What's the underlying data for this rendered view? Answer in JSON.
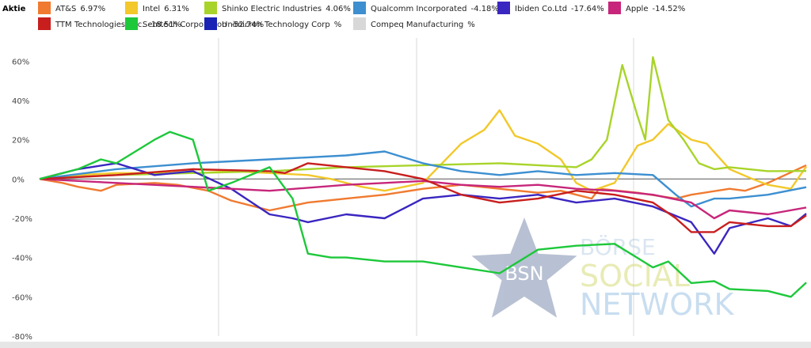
{
  "chart_data": {
    "type": "line",
    "legend_title": "Aktie",
    "ylim": [
      -80,
      75
    ],
    "yticks": [
      {
        "value": 60,
        "label": "60%"
      },
      {
        "value": 40,
        "label": "40%"
      },
      {
        "value": 20,
        "label": "20%"
      },
      {
        "value": 0,
        "label": "0%"
      },
      {
        "value": -20,
        "label": "-20%"
      },
      {
        "value": -40,
        "label": "-40%"
      },
      {
        "value": -60,
        "label": "-60%"
      },
      {
        "value": -80,
        "label": "-80%"
      }
    ],
    "xlim": [
      0,
      100
    ],
    "grid": {
      "vertical": true,
      "zero_line": true
    },
    "legend_placement": "top",
    "watermark": {
      "brand_short": "BSN",
      "line1": "BÖRSE",
      "line2": "SOCIAL",
      "line3": "NETWORK"
    },
    "series": [
      {
        "name": "AT&S",
        "label": "6.97%",
        "color": "#f07a30",
        "x": [
          0,
          3,
          5,
          8,
          10,
          15,
          18,
          22,
          25,
          30,
          35,
          40,
          45,
          50,
          55,
          60,
          65,
          68,
          70,
          72,
          73,
          78,
          83,
          85,
          90,
          92,
          95,
          100
        ],
        "y": [
          0,
          -2,
          -4,
          -6,
          -3,
          -2,
          -3,
          -6,
          -11,
          -16,
          -12,
          -10,
          -8,
          -5,
          -3,
          -5,
          -7,
          -6,
          -8,
          -10,
          -5,
          -7,
          -10,
          -8,
          -5,
          -6,
          -2,
          6.97
        ]
      },
      {
        "name": "Intel",
        "label": "6.31%",
        "color": "#f2c82a",
        "x": [
          0,
          5,
          10,
          15,
          20,
          25,
          30,
          35,
          38,
          40,
          42,
          45,
          50,
          55,
          58,
          60,
          62,
          65,
          68,
          70,
          72,
          75,
          78,
          80,
          82,
          85,
          87,
          90,
          93,
          95,
          98,
          100
        ],
        "y": [
          0,
          2,
          3,
          3,
          5,
          4,
          3,
          2,
          0,
          -2,
          -4,
          -6,
          -2,
          18,
          25,
          35,
          22,
          18,
          10,
          -2,
          -6,
          -2,
          17,
          20,
          28,
          20,
          18,
          5,
          0,
          -3,
          -5,
          6.31
        ]
      },
      {
        "name": "Shinko Electric Industries",
        "label": "4.06%",
        "color": "#a8d42a",
        "x": [
          0,
          10,
          20,
          30,
          40,
          50,
          60,
          65,
          70,
          72,
          74,
          76,
          78,
          79,
          80,
          82,
          84,
          86,
          88,
          90,
          95,
          100
        ],
        "y": [
          0,
          2,
          3,
          4,
          6,
          7,
          8,
          7,
          6,
          10,
          20,
          58,
          32,
          20,
          62,
          30,
          20,
          8,
          5,
          6,
          4,
          4.06
        ]
      },
      {
        "name": "Qualcomm Incorporated",
        "label": "-4.18%",
        "color": "#3d8fd0",
        "x": [
          0,
          10,
          20,
          30,
          40,
          45,
          50,
          55,
          60,
          65,
          70,
          75,
          80,
          83,
          85,
          88,
          90,
          95,
          100
        ],
        "y": [
          0,
          5,
          8,
          10,
          12,
          14,
          8,
          4,
          2,
          4,
          2,
          3,
          2,
          -8,
          -14,
          -10,
          -10,
          -8,
          -4.18
        ]
      },
      {
        "name": "Ibiden Co.Ltd",
        "label": "-17.64%",
        "color": "#3a26c0",
        "x": [
          0,
          5,
          10,
          15,
          20,
          25,
          30,
          33,
          35,
          40,
          45,
          50,
          55,
          60,
          65,
          70,
          75,
          80,
          85,
          88,
          90,
          93,
          95,
          98,
          100
        ],
        "y": [
          0,
          5,
          8,
          2,
          4,
          -5,
          -18,
          -20,
          -22,
          -18,
          -20,
          -10,
          -8,
          -10,
          -8,
          -12,
          -10,
          -14,
          -22,
          -38,
          -25,
          -22,
          -20,
          -24,
          -17.64
        ]
      },
      {
        "name": "Apple",
        "label": "-14.52%",
        "color": "#c7267a",
        "x": [
          0,
          10,
          20,
          30,
          40,
          45,
          50,
          55,
          60,
          65,
          70,
          75,
          80,
          85,
          88,
          90,
          95,
          100
        ],
        "y": [
          0,
          -2,
          -4,
          -6,
          -3,
          -2,
          -1,
          -3,
          -4,
          -3,
          -5,
          -6,
          -8,
          -12,
          -20,
          -16,
          -18,
          -14.52
        ]
      },
      {
        "name": "TTM Technologies, Inc.",
        "label": "-18.51%",
        "color": "#c81e1e",
        "x": [
          0,
          10,
          20,
          30,
          32,
          35,
          40,
          45,
          50,
          55,
          60,
          65,
          70,
          75,
          80,
          83,
          85,
          88,
          90,
          95,
          98,
          100
        ],
        "y": [
          0,
          2,
          5,
          4,
          3,
          8,
          6,
          4,
          0,
          -8,
          -12,
          -10,
          -6,
          -8,
          -12,
          -20,
          -27,
          -27,
          -22,
          -24,
          -24,
          -18.51
        ]
      },
      {
        "name": "Semtech Corporation",
        "label": "-52.74%",
        "color": "#1dc83a",
        "x": [
          0,
          5,
          8,
          10,
          15,
          17,
          20,
          22,
          25,
          30,
          33,
          35,
          38,
          40,
          45,
          50,
          55,
          60,
          65,
          70,
          75,
          80,
          82,
          85,
          88,
          90,
          95,
          98,
          100
        ],
        "y": [
          0,
          5,
          10,
          8,
          20,
          24,
          20,
          -6,
          -2,
          6,
          -10,
          -38,
          -40,
          -40,
          -42,
          -42,
          -45,
          -48,
          -36,
          -34,
          -33,
          -45,
          -42,
          -53,
          -52,
          -56,
          -57,
          -60,
          -52.74
        ]
      },
      {
        "name": "Unimicron Technology Corp",
        "label": "%",
        "color": "#1a23b4",
        "x": [],
        "y": []
      },
      {
        "name": "Compeq Manufacturing",
        "label": "%",
        "color": "#d8d8d8",
        "x": [],
        "y": []
      }
    ]
  }
}
